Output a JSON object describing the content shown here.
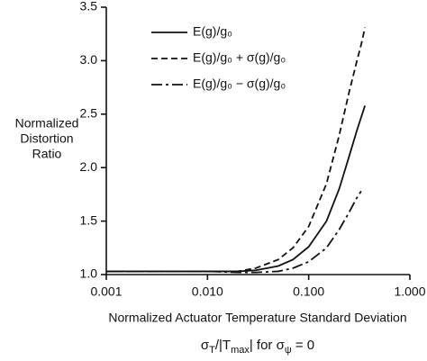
{
  "chart_data": {
    "type": "line",
    "ylabel": [
      "Normalized",
      "Distortion",
      "Ratio"
    ],
    "xlabel": "Normalized Actuator Temperature Standard Deviation",
    "xlabel2": [
      "σ",
      "T",
      "/|T",
      "max",
      "| for σ",
      "ψ",
      " = 0"
    ],
    "xscale": "log",
    "x": [
      0.001,
      0.005,
      0.01,
      0.02,
      0.03,
      0.05,
      0.07,
      0.1,
      0.15,
      0.2,
      0.25,
      0.3,
      0.33,
      0.36
    ],
    "xlim": [
      0.001,
      1
    ],
    "xticks": [
      0.001,
      {
        "value": 0.01,
        "label": "0.010"
      },
      {
        "value": 0.1,
        "label": "0.100"
      },
      {
        "value": 1,
        "label": "1.000"
      }
    ],
    "ylim": [
      1,
      3.5
    ],
    "yticks": [
      {
        "value": 1,
        "label": "1.0"
      },
      {
        "value": 1.5,
        "label": "1.5"
      },
      {
        "value": 2,
        "label": "2.0"
      },
      {
        "value": 2.5,
        "label": "2.5"
      },
      {
        "value": 3,
        "label": "3.0"
      },
      {
        "value": 3.5,
        "label": "3.5"
      }
    ],
    "legend": "upper left",
    "series": [
      {
        "name": "E(g)/g₀",
        "color": "#111111",
        "dash": "solid",
        "values": [
          1.03,
          1.03,
          1.03,
          1.03,
          1.04,
          1.08,
          1.14,
          1.26,
          1.5,
          1.8,
          2.1,
          2.35,
          2.47,
          2.58
        ]
      },
      {
        "name": "E(g)/g₀ + σ(g)/g₀",
        "color": "#111111",
        "dash": "dashed",
        "values": [
          1.03,
          1.03,
          1.03,
          1.03,
          1.06,
          1.14,
          1.25,
          1.45,
          1.85,
          2.3,
          2.7,
          3.0,
          3.15,
          3.31
        ]
      },
      {
        "name": "E(g)/g₀ − σ(g)/g₀",
        "color": "#111111",
        "dash": "dashdot",
        "values": [
          1.03,
          1.03,
          1.03,
          1.02,
          1.02,
          1.03,
          1.06,
          1.12,
          1.25,
          1.42,
          1.58,
          1.72,
          1.78,
          null
        ]
      }
    ]
  }
}
